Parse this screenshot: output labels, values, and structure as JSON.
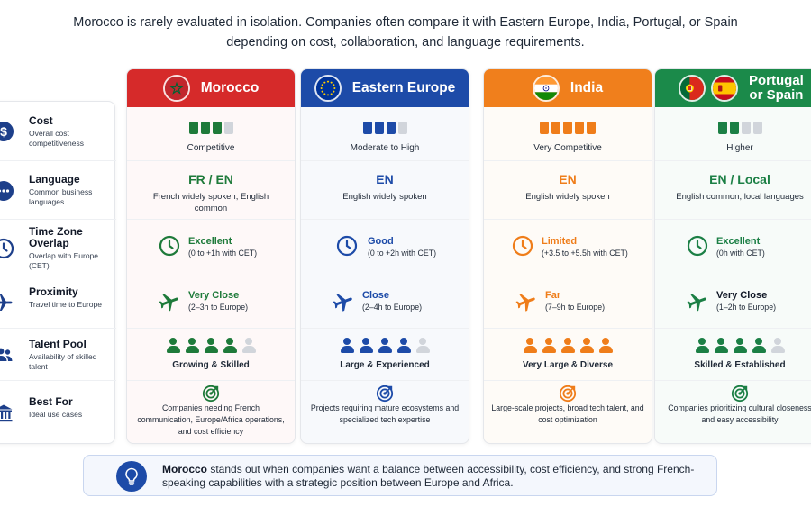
{
  "intro": {
    "line1": "Morocco is rarely evaluated in isolation. Companies often compare it with Eastern Europe, India, Portugal, or Spain",
    "line2": "depending on cost, collaboration, and language requirements."
  },
  "rows": [
    {
      "title": "Cost",
      "sub": "Overall cost competitiveness",
      "icon": "dollar-icon"
    },
    {
      "title": "Language",
      "sub": "Common business languages",
      "icon": "chat-icon"
    },
    {
      "title": "Time Zone Overlap",
      "sub": "Overlap with Europe (CET)",
      "icon": "clock-icon"
    },
    {
      "title": "Proximity",
      "sub": "Travel time to Europe",
      "icon": "plane-icon"
    },
    {
      "title": "Talent Pool",
      "sub": "Availability of skilled talent",
      "icon": "people-icon"
    },
    {
      "title": "Best For",
      "sub": "Ideal use cases",
      "icon": "building-icon"
    }
  ],
  "columns": [
    {
      "name": "Morocco",
      "head_color": "#d62a2a",
      "accent": "#1e7a3a",
      "bar_color": "#1e7a3a",
      "flag": "morocco-flag-icon",
      "cost_filled": 3,
      "cost_label": "Competitive",
      "lang_big": "FR / EN",
      "lang_sub": "French widely spoken, English common",
      "tz_title": "Excellent",
      "tz_sub": "(0 to +1h with CET)",
      "prox_title": "Very Close",
      "prox_sub": "(2–3h to Europe)",
      "talent_filled": 4,
      "talent_label": "Growing & Skilled",
      "best_for": "Companies needing French communication, Europe/Africa operations, and cost efficiency"
    },
    {
      "name": "Eastern Europe",
      "head_color": "#1d4ba8",
      "accent": "#1d4ba8",
      "bar_color": "#1d4ba8",
      "flag": "eu-flag-icon",
      "cost_filled": 3,
      "cost_label": "Moderate to High",
      "lang_big": "EN",
      "lang_sub": "English widely spoken",
      "tz_title": "Good",
      "tz_sub": "(0 to +2h with CET)",
      "prox_title": "Close",
      "prox_sub": "(2–4h to Europe)",
      "talent_filled": 4,
      "talent_label": "Large & Experienced",
      "best_for": "Projects requiring mature ecosystems and specialized tech expertise"
    },
    {
      "name": "India",
      "head_color": "#f07f1c",
      "accent": "#ef7d1a",
      "bar_color": "#ef7d1a",
      "flag": "india-flag-icon",
      "cost_filled": 5,
      "cost_label": "Very Competitive",
      "lang_big": "EN",
      "lang_sub": "English widely spoken",
      "tz_title": "Limited",
      "tz_sub": "(+3.5 to +5.5h with CET)",
      "prox_title": "Far",
      "prox_sub": "(7–9h to Europe)",
      "talent_filled": 5,
      "talent_label": "Very Large & Diverse",
      "best_for": "Large-scale projects, broad tech talent, and cost optimization"
    },
    {
      "name": "Portugal or Spain",
      "name_line1": "Portugal",
      "name_line2": "or Spain",
      "head_color": "#1b8a4a",
      "accent": "#1b7f45",
      "bar_color": "#1b7f45",
      "flag": "portugal-spain-flag-icon",
      "cost_filled": 2,
      "cost_label": "Higher",
      "lang_big": "EN / Local",
      "lang_sub": "English common, local languages",
      "tz_title": "Excellent",
      "tz_sub": "(0h with CET)",
      "prox_title": "Very Close",
      "prox_sub": "(1–2h to Europe)",
      "talent_filled": 4,
      "talent_label": "Skilled & Established",
      "best_for": "Companies prioritizing cultural closeness and easy accessibility"
    }
  ],
  "summary": {
    "bold": "Morocco",
    "text": " stands out when companies want a balance between accessibility, cost efficiency, and strong French-speaking capabilities with a strategic position between Europe and Africa.",
    "icon": "lightbulb-icon"
  }
}
